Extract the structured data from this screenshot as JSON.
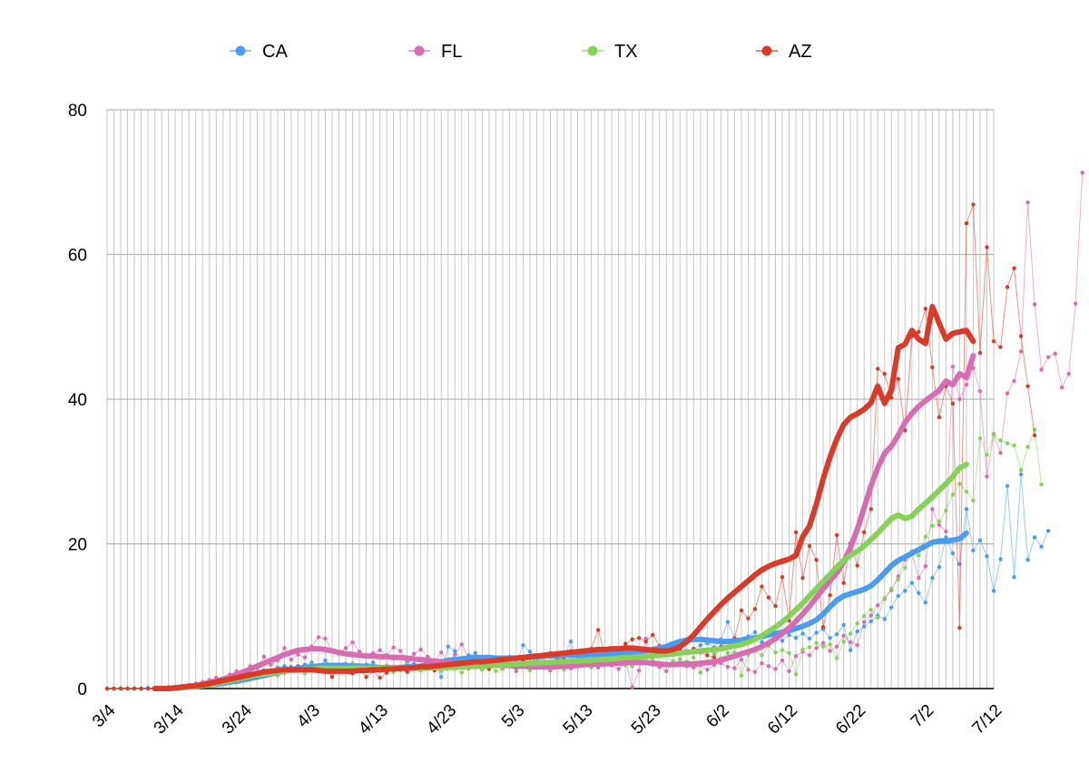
{
  "chart_data": {
    "type": "line",
    "x_start": "3/4",
    "x_end": "7/12",
    "x_tick_labels": [
      "3/4",
      "3/14",
      "3/24",
      "4/3",
      "4/13",
      "4/23",
      "5/3",
      "5/13",
      "5/23",
      "6/2",
      "6/12",
      "6/22",
      "7/2",
      "7/12"
    ],
    "ylim": [
      0,
      80
    ],
    "y_ticks": [
      0,
      20,
      40,
      60,
      80
    ],
    "grid": true,
    "legend_position": "top",
    "legend": [
      "CA",
      "FL",
      "TX",
      "AZ"
    ],
    "series": [
      {
        "name": "CA",
        "color": "#4a9cf0",
        "daily_from": "3/4",
        "daily": [
          0,
          0,
          0,
          0,
          0,
          0,
          0.1,
          0.1,
          0.1,
          0.2,
          0.2,
          0.3,
          0.5,
          0.7,
          0.6,
          0.8,
          1.0,
          0.9,
          1.2,
          1.5,
          1.4,
          1.8,
          2.0,
          2.3,
          2.5,
          2.9,
          3.1,
          3.0,
          2.7,
          3.3,
          3.6,
          3.2,
          3.9,
          2.8,
          3.0,
          3.4,
          2.5,
          2.9,
          3.3,
          3.6,
          2.8,
          3.1,
          3.0,
          2.6,
          3.7,
          3.4,
          3.1,
          2.9,
          3.3,
          1.6,
          5.8,
          5.2,
          3.9,
          4.6,
          4.9,
          3.5,
          4.1,
          3.8,
          4.2,
          4.4,
          3.6,
          6.0,
          5.1,
          3.4,
          4.3,
          4.6,
          4.1,
          4.5,
          6.5,
          3.7,
          4.2,
          5.5,
          4.8,
          3.9,
          4.4,
          5.2,
          4.6,
          4.1,
          5.0,
          5.3,
          4.7,
          5.6,
          4.9,
          5.1,
          5.8,
          5.2,
          5.4,
          6.0,
          6.3,
          5.7,
          6.8,
          9.2,
          7.0,
          6.5,
          7.2,
          7.8,
          6.4,
          8.0,
          7.1,
          6.6,
          7.4,
          7.0,
          7.6,
          6.9,
          7.7,
          8.2,
          7.0,
          7.5,
          8.8,
          5.3,
          7.9,
          8.6,
          9.3,
          10.1,
          9.6,
          11.2,
          12.8,
          13.5,
          14.6,
          13.2,
          11.9,
          15.3,
          16.8,
          20.9,
          18.7,
          17.2,
          24.8,
          19.1,
          20.5,
          18.3,
          13.5,
          17.9,
          28.0,
          15.4,
          29.6,
          17.8,
          20.9,
          19.6,
          21.8
        ],
        "avg_from": "3/11",
        "avg": [
          0,
          0,
          0,
          0.1,
          0.2,
          0.2,
          0.3,
          0.4,
          0.5,
          0.6,
          0.7,
          0.9,
          1.0,
          1.2,
          1.4,
          1.6,
          1.8,
          2.0,
          2.2,
          2.4,
          2.6,
          2.8,
          2.9,
          3.0,
          3.1,
          3.2,
          3.2,
          3.2,
          3.2,
          3.1,
          3.1,
          3.0,
          3.0,
          2.9,
          2.9,
          2.9,
          2.9,
          3.0,
          3.0,
          3.1,
          3.3,
          3.5,
          3.7,
          3.9,
          4.0,
          4.1,
          4.2,
          4.3,
          4.3,
          4.3,
          4.2,
          4.2,
          4.2,
          4.2,
          4.3,
          4.4,
          4.4,
          4.5,
          4.5,
          4.5,
          4.6,
          4.6,
          4.6,
          4.6,
          4.7,
          4.7,
          4.8,
          4.8,
          4.9,
          5.0,
          5.0,
          5.1,
          5.2,
          5.4,
          5.6,
          5.8,
          6.2,
          6.5,
          6.7,
          6.8,
          6.8,
          6.7,
          6.6,
          6.5,
          6.5,
          6.6,
          6.7,
          6.9,
          7.0,
          7.2,
          7.4,
          7.6,
          7.8,
          8.0,
          8.3,
          8.6,
          9.0,
          9.5,
          10.3,
          11.3,
          12.2,
          12.8,
          13.1,
          13.4,
          13.7,
          14.2,
          15.0,
          16.0,
          17.0,
          17.7,
          18.2,
          18.7,
          19.2,
          19.7,
          20.2,
          20.4,
          20.4,
          20.5,
          20.7,
          21.5
        ]
      },
      {
        "name": "FL",
        "color": "#d96bb0",
        "daily_from": "3/4",
        "daily": [
          0,
          0,
          0,
          0,
          0,
          0,
          0,
          0,
          0.1,
          0.2,
          0.2,
          0.3,
          0.4,
          0.6,
          0.9,
          1.2,
          1.5,
          1.3,
          1.9,
          2.4,
          2.0,
          3.1,
          2.8,
          4.4,
          3.3,
          3.9,
          5.6,
          4.0,
          4.7,
          4.3,
          5.8,
          7.1,
          6.9,
          5.2,
          4.8,
          5.6,
          6.4,
          5.1,
          4.5,
          4.9,
          5.3,
          4.6,
          5.7,
          5.2,
          3.9,
          4.8,
          5.4,
          4.4,
          3.8,
          5.0,
          3.6,
          4.7,
          6.1,
          4.2,
          3.9,
          2.7,
          3.5,
          4.3,
          3.7,
          3.2,
          2.4,
          3.9,
          3.1,
          4.6,
          3.0,
          2.5,
          3.6,
          3.3,
          2.8,
          3.1,
          3.9,
          3.6,
          2.9,
          3.5,
          3.2,
          2.7,
          3.8,
          0.2,
          2.5,
          6.9,
          3.3,
          3.0,
          2.4,
          3.7,
          3.6,
          3.1,
          2.9,
          3.2,
          2.6,
          3.3,
          3.5,
          3.0,
          2.8,
          4.0,
          2.6,
          2.3,
          3.5,
          3.1,
          2.7,
          3.9,
          2.4,
          4.5,
          5.1,
          4.6,
          5.6,
          6.3,
          5.2,
          5.8,
          7.3,
          6.4,
          6.0,
          9.2,
          10.1,
          11.5,
          12.4,
          13.6,
          15.5,
          17.8,
          18.7,
          15.3,
          16.9,
          24.8,
          22.6,
          21.7,
          44.5,
          40.0,
          42.0,
          44.3,
          41.1,
          29.3,
          35.2,
          32.6,
          40.8,
          42.5,
          46.6,
          67.2,
          53.1,
          44.1,
          45.8,
          46.3,
          41.6,
          43.5,
          53.2,
          71.3
        ],
        "avg_from": "3/11",
        "avg": [
          0,
          0,
          0,
          0.1,
          0.2,
          0.3,
          0.4,
          0.6,
          0.8,
          1.0,
          1.3,
          1.6,
          1.9,
          2.3,
          2.7,
          3.1,
          3.5,
          3.9,
          4.3,
          4.7,
          5.0,
          5.3,
          5.4,
          5.5,
          5.5,
          5.4,
          5.2,
          5.0,
          4.8,
          4.7,
          4.6,
          4.5,
          4.5,
          4.4,
          4.4,
          4.3,
          4.3,
          4.2,
          4.1,
          4.0,
          3.9,
          3.8,
          3.7,
          3.6,
          3.5,
          3.4,
          3.4,
          3.3,
          3.3,
          3.2,
          3.2,
          3.2,
          3.2,
          3.1,
          3.1,
          3.0,
          3.0,
          3.0,
          3.0,
          3.0,
          3.1,
          3.1,
          3.2,
          3.3,
          3.3,
          3.4,
          3.4,
          3.5,
          3.5,
          3.6,
          3.6,
          3.6,
          3.6,
          3.5,
          3.4,
          3.3,
          3.3,
          3.4,
          3.4,
          3.4,
          3.5,
          3.6,
          3.7,
          3.9,
          4.2,
          4.5,
          4.8,
          5.1,
          5.4,
          5.8,
          6.3,
          6.9,
          7.6,
          8.4,
          9.3,
          10.3,
          11.4,
          12.6,
          13.8,
          14.9,
          16.0,
          17.5,
          19.5,
          22.0,
          25.0,
          28.0,
          30.5,
          32.5,
          33.5,
          35.0,
          36.8,
          38.0,
          39.0,
          39.8,
          40.5,
          41.2,
          42.5,
          42.0,
          43.5,
          43.0,
          46.0
        ]
      },
      {
        "name": "TX",
        "color": "#86d15a",
        "daily_from": "3/4",
        "daily": [
          0,
          0,
          0,
          0,
          0,
          0,
          0,
          0,
          0.1,
          0.1,
          0.2,
          0.3,
          0.3,
          0.5,
          0.6,
          0.8,
          0.9,
          1.2,
          1.1,
          1.5,
          1.9,
          1.6,
          2.2,
          2.5,
          2.0,
          1.8,
          2.7,
          2.4,
          2.9,
          2.1,
          3.3,
          2.6,
          2.8,
          3.1,
          2.5,
          2.9,
          3.5,
          2.4,
          2.8,
          3.0,
          2.7,
          3.2,
          2.3,
          2.6,
          3.4,
          2.9,
          2.5,
          3.1,
          2.8,
          2.4,
          3.0,
          2.7,
          2.2,
          3.3,
          2.9,
          2.6,
          3.1,
          2.4,
          2.7,
          3.5,
          2.8,
          3.2,
          2.5,
          3.6,
          3.0,
          2.9,
          3.4,
          2.6,
          3.8,
          3.1,
          3.3,
          2.9,
          3.6,
          4.2,
          3.5,
          3.8,
          3.2,
          3.1,
          4.0,
          3.6,
          3.9,
          3.4,
          4.6,
          3.8,
          4.1,
          3.7,
          4.3,
          2.2,
          3.6,
          4.8,
          4.2,
          4.9,
          5.0,
          1.8,
          4.7,
          5.2,
          4.6,
          5.9,
          5.0,
          5.3,
          4.9,
          2.0,
          5.4,
          5.7,
          6.3,
          5.8,
          6.1,
          4.2,
          6.5,
          7.6,
          9.0,
          10.0,
          10.9,
          9.8,
          12.5,
          13.8,
          15.1,
          16.7,
          19.0,
          18.4,
          21.0,
          22.5,
          23.1,
          24.6,
          26.8,
          28.3,
          27.2,
          26.0,
          34.6,
          32.3,
          35.1,
          34.3,
          33.9,
          33.6,
          30.2,
          33.4,
          35.8,
          28.2
        ],
        "avg_from": "3/11",
        "avg": [
          0,
          0,
          0,
          0.1,
          0.1,
          0.2,
          0.3,
          0.4,
          0.5,
          0.7,
          0.9,
          1.1,
          1.3,
          1.5,
          1.7,
          1.9,
          2.0,
          2.1,
          2.3,
          2.4,
          2.5,
          2.6,
          2.7,
          2.7,
          2.8,
          2.8,
          2.8,
          2.8,
          2.8,
          2.8,
          2.8,
          2.8,
          2.8,
          2.8,
          2.8,
          2.8,
          2.8,
          2.8,
          2.8,
          2.8,
          2.8,
          2.9,
          2.9,
          2.9,
          3.0,
          3.0,
          3.0,
          3.1,
          3.1,
          3.2,
          3.2,
          3.3,
          3.3,
          3.4,
          3.4,
          3.5,
          3.5,
          3.6,
          3.6,
          3.7,
          3.7,
          3.8,
          3.8,
          3.9,
          3.9,
          4.0,
          4.0,
          4.1,
          4.2,
          4.3,
          4.3,
          4.4,
          4.4,
          4.5,
          4.6,
          4.7,
          4.8,
          4.9,
          5.0,
          5.1,
          5.2,
          5.3,
          5.4,
          5.5,
          5.7,
          5.9,
          6.1,
          6.4,
          6.8,
          7.3,
          7.9,
          8.5,
          9.2,
          10.0,
          10.9,
          11.8,
          12.8,
          13.8,
          14.8,
          15.8,
          16.8,
          17.7,
          18.4,
          19.0,
          19.7,
          20.6,
          21.5,
          22.5,
          23.5,
          24.0,
          23.5,
          23.8,
          24.8,
          25.6,
          26.5,
          27.4,
          28.3,
          29.3,
          30.5,
          31.0
        ]
      },
      {
        "name": "AZ",
        "color": "#db3a28",
        "daily_from": "3/4",
        "daily": [
          0,
          0,
          0,
          0,
          0,
          0,
          0,
          0,
          0.1,
          0.1,
          0.1,
          0.2,
          0.2,
          0.3,
          0.4,
          0.5,
          0.6,
          0.8,
          1.1,
          1.0,
          1.4,
          1.7,
          1.5,
          2.1,
          1.9,
          2.5,
          2.2,
          2.8,
          3.1,
          2.6,
          3.0,
          2.4,
          2.9,
          1.6,
          3.3,
          2.5,
          2.1,
          2.8,
          1.6,
          2.4,
          1.5,
          2.2,
          2.9,
          2.6,
          2.3,
          3.1,
          2.8,
          3.2,
          2.5,
          2.9,
          3.3,
          3.0,
          3.4,
          2.8,
          3.6,
          3.1,
          2.7,
          3.5,
          4.0,
          3.2,
          2.9,
          3.8,
          4.2,
          3.7,
          4.5,
          4.9,
          4.3,
          4.0,
          5.2,
          4.8,
          3.9,
          5.5,
          8.1,
          4.7,
          5.0,
          4.4,
          6.2,
          6.8,
          7.0,
          6.5,
          7.4,
          5.9,
          5.6,
          6.1,
          5.3,
          4.9,
          5.5,
          5.0,
          4.6,
          4.3,
          5.8,
          6.6,
          6.9,
          10.8,
          9.7,
          11.0,
          14.1,
          12.6,
          11.4,
          15.4,
          9.4,
          21.6,
          15.3,
          19.7,
          17.8,
          8.5,
          12.9,
          21.2,
          14.6,
          20.1,
          17.0,
          21.6,
          24.8,
          44.2,
          43.5,
          40.2,
          42.8,
          35.7,
          48.7,
          49.3,
          52.5,
          44.4,
          37.5,
          41.8,
          39.4,
          8.4,
          64.3,
          66.9,
          46.4,
          61.0,
          48.0,
          47.2,
          55.5,
          58.1,
          48.7,
          41.8,
          35.0
        ],
        "avg_from": "3/11",
        "avg": [
          0,
          0,
          0,
          0.1,
          0.2,
          0.3,
          0.4,
          0.5,
          0.7,
          0.9,
          1.1,
          1.3,
          1.5,
          1.7,
          1.9,
          2.1,
          2.3,
          2.4,
          2.5,
          2.6,
          2.6,
          2.6,
          2.6,
          2.6,
          2.5,
          2.4,
          2.4,
          2.4,
          2.4,
          2.4,
          2.5,
          2.5,
          2.6,
          2.6,
          2.7,
          2.7,
          2.8,
          2.8,
          2.9,
          3.0,
          3.0,
          3.1,
          3.2,
          3.3,
          3.4,
          3.5,
          3.6,
          3.7,
          3.7,
          3.8,
          3.9,
          4.0,
          4.1,
          4.2,
          4.3,
          4.4,
          4.5,
          4.6,
          4.7,
          4.8,
          4.9,
          5.0,
          5.1,
          5.2,
          5.3,
          5.4,
          5.4,
          5.5,
          5.5,
          5.6,
          5.6,
          5.5,
          5.4,
          5.3,
          5.2,
          5.2,
          5.4,
          5.8,
          6.5,
          7.4,
          8.5,
          9.6,
          10.6,
          11.6,
          12.5,
          13.3,
          14.1,
          14.9,
          15.7,
          16.4,
          16.9,
          17.3,
          17.6,
          17.9,
          18.4,
          21.0,
          22.5,
          25.5,
          29.0,
          32.0,
          34.5,
          36.5,
          37.5,
          38.0,
          38.6,
          39.5,
          41.8,
          39.4,
          41.3,
          47.1,
          47.6,
          49.5,
          48.3,
          47.7,
          52.8,
          50.5,
          48.3,
          49.1,
          49.3,
          49.5,
          48.0
        ]
      }
    ]
  }
}
